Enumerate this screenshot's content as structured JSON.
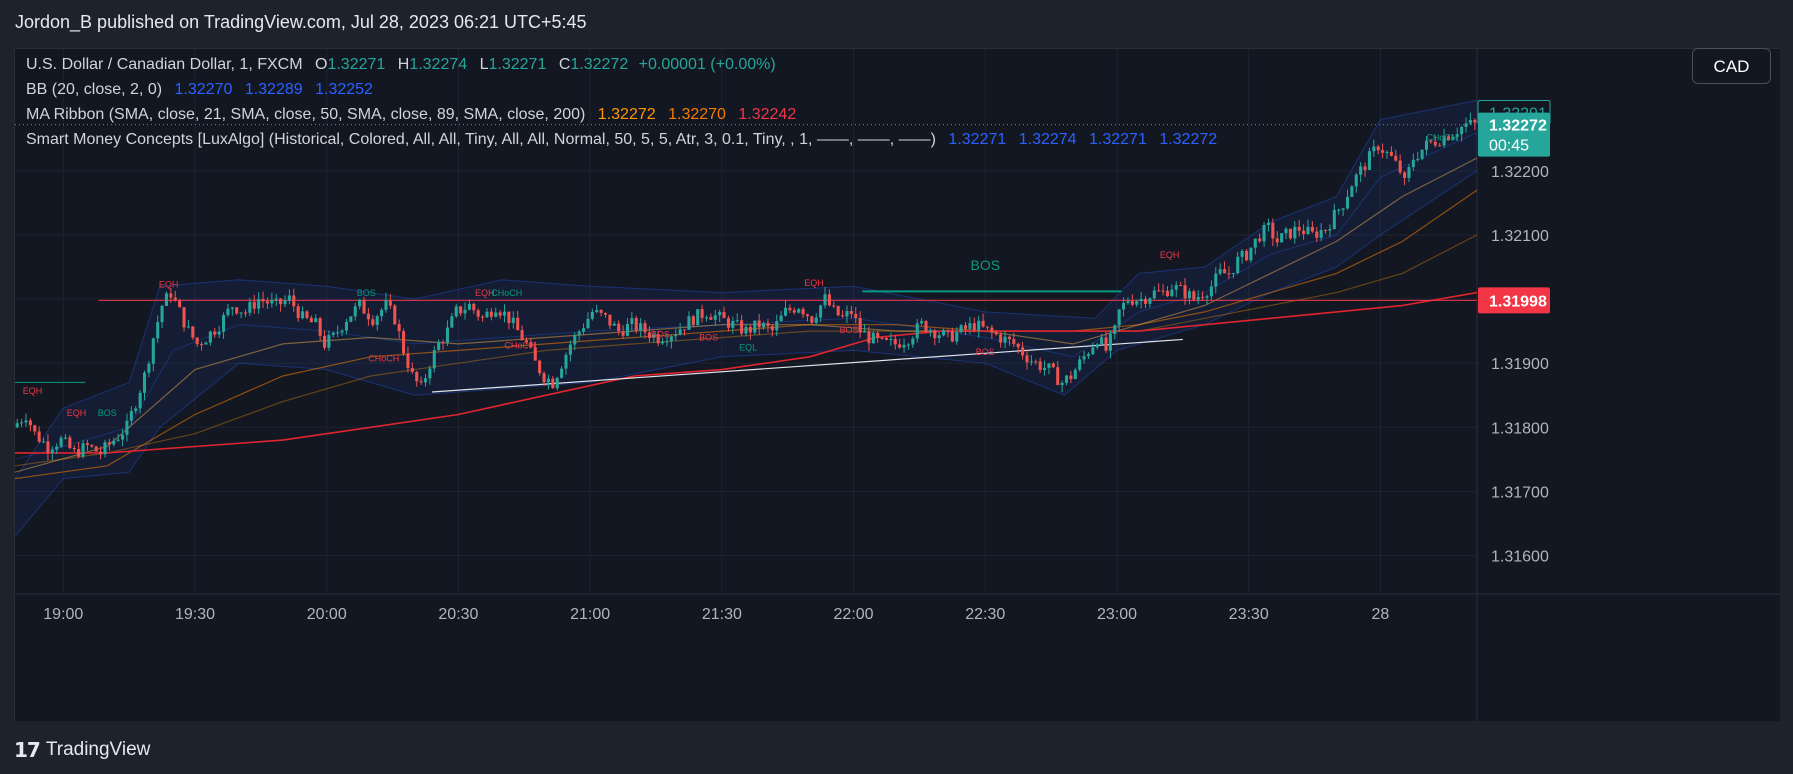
{
  "header": {
    "publisher": "Jordon_B published on TradingView.com, Jul 28, 2023 06:21 UTC+5:45"
  },
  "toolbar": {
    "currency": "CAD"
  },
  "brand": {
    "name": "TradingView"
  },
  "legend": {
    "symbol": "U.S. Dollar / Canadian Dollar, 1, FXCM",
    "o_label": "O",
    "o": "1.32271",
    "h_label": "H",
    "h": "1.32274",
    "l_label": "L",
    "l": "1.32271",
    "c_label": "C",
    "c": "1.32272",
    "change": "+0.00001 (+0.00%)",
    "bb_name": "BB (20, close, 2, 0)",
    "bb": [
      "1.32270",
      "1.32289",
      "1.32252"
    ],
    "ma_name": "MA Ribbon (SMA, close, 21, SMA, close, 50, SMA, close, 89, SMA, close, 200)",
    "ma": [
      "1.32272",
      "1.32270",
      "1.32242"
    ],
    "smc_name": "Smart Money Concepts [LuxAlgo] (Historical, Colored, All, All, Tiny, All, All, Normal, 50, 5, 5, Atr, 3, 0.1, Tiny, , 1, ——, ——, ——)",
    "smc": [
      "1.32271",
      "1.32274",
      "1.32271",
      "1.32272"
    ]
  },
  "colors": {
    "background": "#131722",
    "frame": "#1e222d",
    "grid": "#1f2330",
    "text": "#b2b5be",
    "up": "#26a69a",
    "down": "#ef5350",
    "bb_blue": "#2962ff",
    "ma21": "#ff9800",
    "ma50": "#f57c00",
    "ma200": "#f23645",
    "bos_green": "#089981",
    "eq_red": "#f23645"
  },
  "chart_data": {
    "type": "candlestick",
    "symbol": "USDCAD",
    "interval": "1",
    "ylim": [
      1.3154,
      1.3239
    ],
    "y_ticks": [
      1.316,
      1.317,
      1.318,
      1.319,
      1.32,
      1.321,
      1.322
    ],
    "y_tick_labels": [
      "1.31600",
      "1.31700",
      "1.31800",
      "1.31900",
      "1.32000",
      "1.32100",
      "1.32200"
    ],
    "x_ticks": [
      {
        "label": "19:00",
        "t": 0
      },
      {
        "label": "19:30",
        "t": 30
      },
      {
        "label": "20:00",
        "t": 60
      },
      {
        "label": "20:30",
        "t": 90
      },
      {
        "label": "21:00",
        "t": 120
      },
      {
        "label": "21:30",
        "t": 150
      },
      {
        "label": "22:00",
        "t": 180
      },
      {
        "label": "22:30",
        "t": 210
      },
      {
        "label": "23:00",
        "t": 240
      },
      {
        "label": "23:30",
        "t": 270
      },
      {
        "label": "28",
        "t": 300
      }
    ],
    "xlim": [
      -11,
      322
    ],
    "price_badges": [
      {
        "label": "1.32291",
        "value": 1.32291,
        "style": "outline"
      },
      {
        "label": "1.32272",
        "sub": "00:45",
        "value": 1.32272,
        "style": "green"
      },
      {
        "label": "1.31998",
        "value": 1.31998,
        "style": "red"
      }
    ],
    "close_path": [
      [
        -11,
        1.318
      ],
      [
        -8,
        1.3182
      ],
      [
        -6,
        1.3179
      ],
      [
        -3,
        1.3177
      ],
      [
        0,
        1.3178
      ],
      [
        3,
        1.3176
      ],
      [
        6,
        1.3177
      ],
      [
        9,
        1.3176
      ],
      [
        12,
        1.3178
      ],
      [
        15,
        1.318
      ],
      [
        17,
        1.3184
      ],
      [
        19,
        1.3188
      ],
      [
        21,
        1.3194
      ],
      [
        23,
        1.3199
      ],
      [
        25,
        1.3201
      ],
      [
        27,
        1.3198
      ],
      [
        29,
        1.3195
      ],
      [
        31,
        1.3193
      ],
      [
        33,
        1.3194
      ],
      [
        36,
        1.3196
      ],
      [
        39,
        1.3199
      ],
      [
        42,
        1.3198
      ],
      [
        45,
        1.32
      ],
      [
        49,
        1.3199
      ],
      [
        52,
        1.32
      ],
      [
        55,
        1.3197
      ],
      [
        58,
        1.3196
      ],
      [
        60,
        1.3193
      ],
      [
        62,
        1.3194
      ],
      [
        65,
        1.3197
      ],
      [
        68,
        1.3199
      ],
      [
        71,
        1.3197
      ],
      [
        74,
        1.3199
      ],
      [
        76,
        1.3197
      ],
      [
        78,
        1.3192
      ],
      [
        80,
        1.3188
      ],
      [
        82,
        1.3186
      ],
      [
        84,
        1.319
      ],
      [
        86,
        1.3193
      ],
      [
        88,
        1.3195
      ],
      [
        90,
        1.3198
      ],
      [
        93,
        1.3199
      ],
      [
        96,
        1.3197
      ],
      [
        99,
        1.3199
      ],
      [
        102,
        1.3197
      ],
      [
        104,
        1.3195
      ],
      [
        106,
        1.3193
      ],
      [
        108,
        1.319
      ],
      [
        110,
        1.3188
      ],
      [
        112,
        1.3187
      ],
      [
        114,
        1.319
      ],
      [
        116,
        1.3193
      ],
      [
        118,
        1.3195
      ],
      [
        121,
        1.3198
      ],
      [
        124,
        1.3197
      ],
      [
        127,
        1.3195
      ],
      [
        130,
        1.3196
      ],
      [
        133,
        1.3195
      ],
      [
        136,
        1.3194
      ],
      [
        140,
        1.3195
      ],
      [
        144,
        1.3197
      ],
      [
        147,
        1.3198
      ],
      [
        150,
        1.3197
      ],
      [
        153,
        1.3196
      ],
      [
        156,
        1.3195
      ],
      [
        159,
        1.3196
      ],
      [
        162,
        1.3195
      ],
      [
        165,
        1.3198
      ],
      [
        168,
        1.3199
      ],
      [
        171,
        1.3197
      ],
      [
        174,
        1.32
      ],
      [
        176,
        1.3198
      ],
      [
        178,
        1.3197
      ],
      [
        180,
        1.3198
      ],
      [
        182,
        1.3195
      ],
      [
        184,
        1.3194
      ],
      [
        187,
        1.3193
      ],
      [
        190,
        1.3193
      ],
      [
        193,
        1.3194
      ],
      [
        196,
        1.3196
      ],
      [
        199,
        1.3195
      ],
      [
        202,
        1.3194
      ],
      [
        205,
        1.3195
      ],
      [
        208,
        1.3196
      ],
      [
        211,
        1.3195
      ],
      [
        214,
        1.3194
      ],
      [
        217,
        1.3193
      ],
      [
        220,
        1.3191
      ],
      [
        222,
        1.319
      ],
      [
        225,
        1.3189
      ],
      [
        228,
        1.3187
      ],
      [
        230,
        1.3188
      ],
      [
        232,
        1.319
      ],
      [
        234,
        1.3192
      ],
      [
        236,
        1.3194
      ],
      [
        238,
        1.3192
      ],
      [
        240,
        1.3195
      ],
      [
        241,
        1.3198
      ],
      [
        243,
        1.32
      ],
      [
        246,
        1.32
      ],
      [
        249,
        1.3201
      ],
      [
        251,
        1.3201
      ],
      [
        253,
        1.3202
      ],
      [
        256,
        1.3201
      ],
      [
        258,
        1.32
      ],
      [
        260,
        1.3201
      ],
      [
        262,
        1.3202
      ],
      [
        264,
        1.3204
      ],
      [
        266,
        1.3204
      ],
      [
        268,
        1.3206
      ],
      [
        270,
        1.3207
      ],
      [
        273,
        1.321
      ],
      [
        275,
        1.3211
      ],
      [
        277,
        1.3209
      ],
      [
        279,
        1.321
      ],
      [
        282,
        1.3211
      ],
      [
        285,
        1.321
      ],
      [
        288,
        1.3211
      ],
      [
        290,
        1.3213
      ],
      [
        292,
        1.3215
      ],
      [
        294,
        1.3218
      ],
      [
        296,
        1.322
      ],
      [
        298,
        1.3222
      ],
      [
        300,
        1.3224
      ],
      [
        303,
        1.3222
      ],
      [
        305,
        1.322
      ],
      [
        306,
        1.3218
      ],
      [
        308,
        1.3222
      ],
      [
        311,
        1.3224
      ],
      [
        314,
        1.3225
      ],
      [
        317,
        1.3226
      ],
      [
        320,
        1.32272
      ]
    ],
    "bb_upper": [
      [
        -11,
        1.3172
      ],
      [
        0,
        1.3183
      ],
      [
        15,
        1.3187
      ],
      [
        22,
        1.3202
      ],
      [
        40,
        1.3203
      ],
      [
        60,
        1.3202
      ],
      [
        80,
        1.32
      ],
      [
        100,
        1.3203
      ],
      [
        120,
        1.3202
      ],
      [
        150,
        1.3201
      ],
      [
        180,
        1.3202
      ],
      [
        210,
        1.3198
      ],
      [
        235,
        1.3197
      ],
      [
        245,
        1.3204
      ],
      [
        260,
        1.3205
      ],
      [
        275,
        1.3212
      ],
      [
        290,
        1.3216
      ],
      [
        300,
        1.3228
      ],
      [
        322,
        1.3231
      ]
    ],
    "bb_lower": [
      [
        -11,
        1.3163
      ],
      [
        0,
        1.3172
      ],
      [
        15,
        1.3173
      ],
      [
        22,
        1.318
      ],
      [
        40,
        1.319
      ],
      [
        60,
        1.3189
      ],
      [
        80,
        1.3185
      ],
      [
        100,
        1.3186
      ],
      [
        120,
        1.3187
      ],
      [
        150,
        1.3191
      ],
      [
        180,
        1.3192
      ],
      [
        210,
        1.319
      ],
      [
        228,
        1.3185
      ],
      [
        240,
        1.3192
      ],
      [
        260,
        1.3196
      ],
      [
        275,
        1.3201
      ],
      [
        290,
        1.3205
      ],
      [
        300,
        1.321
      ],
      [
        322,
        1.322
      ]
    ],
    "bb_basis": [
      [
        -11,
        1.3175
      ],
      [
        0,
        1.3177
      ],
      [
        15,
        1.318
      ],
      [
        25,
        1.3192
      ],
      [
        40,
        1.3196
      ],
      [
        60,
        1.3195
      ],
      [
        80,
        1.3193
      ],
      [
        100,
        1.3194
      ],
      [
        120,
        1.3195
      ],
      [
        150,
        1.3196
      ],
      [
        180,
        1.3197
      ],
      [
        210,
        1.3194
      ],
      [
        230,
        1.3191
      ],
      [
        245,
        1.3198
      ],
      [
        260,
        1.3201
      ],
      [
        275,
        1.3207
      ],
      [
        290,
        1.321
      ],
      [
        300,
        1.3219
      ],
      [
        322,
        1.3226
      ]
    ],
    "ma21": [
      [
        -11,
        1.3173
      ],
      [
        10,
        1.3177
      ],
      [
        30,
        1.3189
      ],
      [
        50,
        1.3193
      ],
      [
        70,
        1.3194
      ],
      [
        90,
        1.3193
      ],
      [
        110,
        1.3194
      ],
      [
        130,
        1.3195
      ],
      [
        150,
        1.3196
      ],
      [
        170,
        1.3196
      ],
      [
        190,
        1.3195
      ],
      [
        210,
        1.3195
      ],
      [
        230,
        1.3193
      ],
      [
        245,
        1.3196
      ],
      [
        260,
        1.3199
      ],
      [
        275,
        1.3204
      ],
      [
        290,
        1.3209
      ],
      [
        305,
        1.3216
      ],
      [
        322,
        1.3222
      ]
    ],
    "ma50": [
      [
        -11,
        1.3172
      ],
      [
        10,
        1.3174
      ],
      [
        30,
        1.3182
      ],
      [
        50,
        1.3188
      ],
      [
        70,
        1.3191
      ],
      [
        90,
        1.3192
      ],
      [
        110,
        1.3193
      ],
      [
        130,
        1.3194
      ],
      [
        150,
        1.3195
      ],
      [
        170,
        1.3196
      ],
      [
        190,
        1.3196
      ],
      [
        210,
        1.3195
      ],
      [
        230,
        1.3195
      ],
      [
        245,
        1.3196
      ],
      [
        260,
        1.3198
      ],
      [
        275,
        1.3201
      ],
      [
        290,
        1.3204
      ],
      [
        305,
        1.3209
      ],
      [
        322,
        1.3217
      ]
    ],
    "ma89": [
      [
        -11,
        1.3174
      ],
      [
        10,
        1.3176
      ],
      [
        30,
        1.3179
      ],
      [
        50,
        1.3184
      ],
      [
        70,
        1.3188
      ],
      [
        90,
        1.319
      ],
      [
        110,
        1.3192
      ],
      [
        130,
        1.3193
      ],
      [
        150,
        1.3194
      ],
      [
        170,
        1.3195
      ],
      [
        190,
        1.3195
      ],
      [
        210,
        1.3195
      ],
      [
        230,
        1.3195
      ],
      [
        245,
        1.3195
      ],
      [
        260,
        1.3197
      ],
      [
        275,
        1.3199
      ],
      [
        290,
        1.3201
      ],
      [
        305,
        1.3204
      ],
      [
        322,
        1.321
      ]
    ],
    "ma200": [
      [
        -11,
        1.3176
      ],
      [
        10,
        1.3176
      ],
      [
        30,
        1.3177
      ],
      [
        50,
        1.3178
      ],
      [
        70,
        1.318
      ],
      [
        90,
        1.3182
      ],
      [
        110,
        1.3185
      ],
      [
        130,
        1.3188
      ],
      [
        150,
        1.3189
      ],
      [
        170,
        1.3191
      ],
      [
        185,
        1.3194
      ],
      [
        200,
        1.3195
      ],
      [
        215,
        1.3195
      ],
      [
        230,
        1.3195
      ],
      [
        245,
        1.3195
      ],
      [
        260,
        1.3196
      ],
      [
        275,
        1.3197
      ],
      [
        290,
        1.3198
      ],
      [
        305,
        1.3199
      ],
      [
        322,
        1.3201
      ]
    ],
    "h_lines": [
      {
        "t1": 8,
        "t2": 322,
        "y": 1.31998,
        "color": "#f23645",
        "width": 1
      },
      {
        "t1": -11,
        "t2": 5,
        "y": 1.3187,
        "color": "#089981",
        "width": 1
      },
      {
        "t1": 182,
        "t2": 241,
        "y": 1.32012,
        "color": "#089981",
        "width": 2
      }
    ],
    "trend_lines": [
      {
        "t1": 84,
        "t2": 255,
        "y1": 1.31855,
        "y2": 1.31937,
        "color": "#e0e3eb"
      }
    ],
    "annotations": [
      {
        "text": "EQH",
        "t": 24,
        "y": 1.32018,
        "color": "#f23645"
      },
      {
        "text": "EQH",
        "t": -7,
        "y": 1.31852,
        "color": "#f23645"
      },
      {
        "text": "EQH",
        "t": 3,
        "y": 1.31818,
        "color": "#f23645"
      },
      {
        "text": "BOS",
        "t": 10,
        "y": 1.31818,
        "color": "#089981"
      },
      {
        "text": "BOS",
        "t": 69,
        "y": 1.32005,
        "color": "#089981"
      },
      {
        "text": "EQH",
        "t": 96,
        "y": 1.32005,
        "color": "#f23645"
      },
      {
        "text": "CHoCH",
        "t": 101,
        "y": 1.32005,
        "color": "#089981"
      },
      {
        "text": "CHoCH",
        "t": 73,
        "y": 1.31903,
        "color": "#f23645"
      },
      {
        "text": "CHoCH",
        "t": 104,
        "y": 1.31923,
        "color": "#f23645"
      },
      {
        "text": "BOS",
        "t": 136,
        "y": 1.3194,
        "color": "#f23645"
      },
      {
        "text": "BOS",
        "t": 147,
        "y": 1.31935,
        "color": "#f23645"
      },
      {
        "text": "EQL",
        "t": 156,
        "y": 1.3192,
        "color": "#089981"
      },
      {
        "text": "EQH",
        "t": 171,
        "y": 1.3202,
        "color": "#f23645"
      },
      {
        "text": "BOS",
        "t": 179,
        "y": 1.31947,
        "color": "#f23645"
      },
      {
        "text": "BOS",
        "t": 210,
        "y": 1.32045,
        "color": "#089981",
        "size": 14
      },
      {
        "text": "BOS",
        "t": 210,
        "y": 1.31913,
        "color": "#f23645"
      },
      {
        "text": "EQH",
        "t": 252,
        "y": 1.32064,
        "color": "#f23645"
      },
      {
        "text": "CHoCH",
        "t": 314,
        "y": 1.32247,
        "color": "#089981"
      }
    ]
  }
}
